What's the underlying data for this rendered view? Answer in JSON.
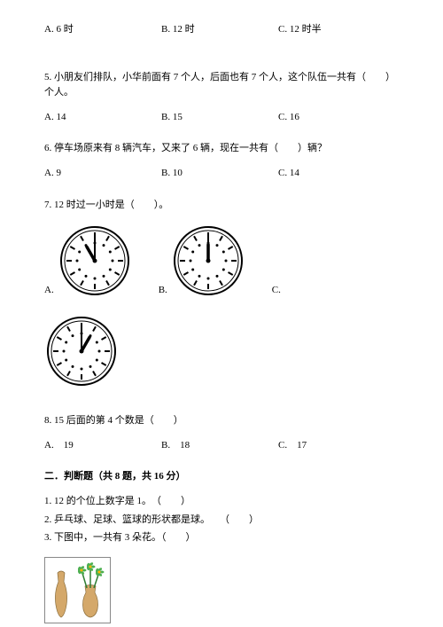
{
  "q_prev_options": {
    "a": "A. 6 时",
    "b": "B. 12 时",
    "c": "C. 12 时半"
  },
  "q5": {
    "text": "5. 小朋友们排队，小华前面有 7 个人，后面也有 7 个人，这个队伍一共有（　　）个人。",
    "a": "A. 14",
    "b": "B. 15",
    "c": "C. 16"
  },
  "q6": {
    "text": "6. 停车场原来有 8 辆汽车，又来了 6 辆，现在一共有（　　）辆？",
    "a": "A. 9",
    "b": "B. 10",
    "c": "C. 14"
  },
  "q7": {
    "text": "7. 12 时过一小时是（　　）。",
    "labelA": "A.",
    "labelB": "B.",
    "labelC": "C."
  },
  "q8": {
    "text": "8. 15 后面的第 4 个数是（　　）",
    "a": "A.　19",
    "b": "B.　18",
    "c": "C.　17"
  },
  "section2": "二．判断题（共 8 题，共 16 分）",
  "judge": {
    "j1": "1. 12 的个位上数字是 1。　（　　）",
    "j2": "2. 乒乓球、足球、篮球的形状都是球。　　（　　）",
    "j3": "3. 下图中，一共有 3 朵花。（　　）"
  },
  "clock": {
    "radius": 42,
    "stroke": "#000000",
    "fill": "#ffffff",
    "tick_count": 12,
    "hands": {
      "a": {
        "hour_angle": -30,
        "minute_angle": 0
      },
      "b": {
        "hour_angle": 0,
        "minute_angle": 0
      },
      "c": {
        "hour_angle": 30,
        "minute_angle": 0
      }
    }
  },
  "vase": {
    "vase_color": "#d4a86a",
    "flower_stem": "#2e7d32",
    "flower_petal": "#4caf50",
    "flower_center": "#ffb300",
    "flower_count": 3
  }
}
